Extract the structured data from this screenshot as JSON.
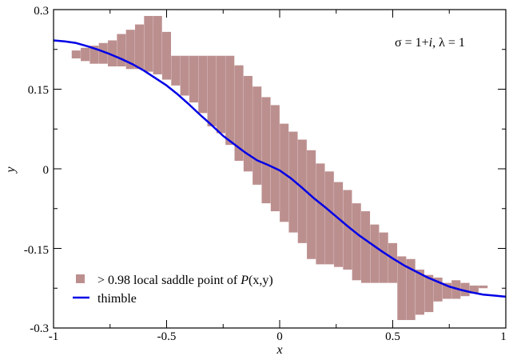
{
  "chart_data": {
    "type": "scatter",
    "title": "",
    "xlabel": "x",
    "ylabel": "y",
    "xlim": [
      -1,
      1
    ],
    "ylim": [
      -0.3,
      0.3
    ],
    "x_ticks": [
      -1,
      -0.5,
      0,
      0.5,
      1
    ],
    "x_tick_labels": [
      "-1",
      "-0.5",
      "0",
      "0.5",
      "1"
    ],
    "y_ticks": [
      -0.3,
      -0.15,
      0,
      0.15,
      0.3
    ],
    "y_tick_labels": [
      "-0.3",
      "-0.15",
      "0",
      "0.15",
      "0.3"
    ],
    "grid": false,
    "annotation": {
      "text_main": "σ = 1+",
      "text_i": "i",
      "text_rest": ", λ = 1"
    },
    "legend": {
      "placement": "bottom-left",
      "entries": [
        {
          "prefix": "> 0.98 local saddle point of ",
          "func": "P",
          "args": "(x,y)",
          "color": "#bc8f8f"
        },
        {
          "label": "thimble",
          "color": "#0000e6"
        }
      ]
    },
    "series": [
      {
        "kind": "bars",
        "color": "#bc8f8f",
        "bin_width": 0.04,
        "ranges": [
          [
            -0.9,
            0.208,
            0.223
          ],
          [
            -0.86,
            0.203,
            0.228
          ],
          [
            -0.82,
            0.198,
            0.232
          ],
          [
            -0.78,
            0.198,
            0.237
          ],
          [
            -0.74,
            0.193,
            0.242
          ],
          [
            -0.7,
            0.193,
            0.254
          ],
          [
            -0.66,
            0.188,
            0.262
          ],
          [
            -0.62,
            0.188,
            0.272
          ],
          [
            -0.58,
            0.183,
            0.288
          ],
          [
            -0.54,
            0.178,
            0.288
          ],
          [
            -0.5,
            0.168,
            0.258
          ],
          [
            -0.46,
            0.157,
            0.213
          ],
          [
            -0.42,
            0.138,
            0.213
          ],
          [
            -0.38,
            0.125,
            0.213
          ],
          [
            -0.34,
            0.105,
            0.213
          ],
          [
            -0.3,
            0.08,
            0.213
          ],
          [
            -0.26,
            0.067,
            0.213
          ],
          [
            -0.22,
            0.045,
            0.213
          ],
          [
            -0.18,
            0.015,
            0.195
          ],
          [
            -0.14,
            -0.005,
            0.175
          ],
          [
            -0.1,
            -0.03,
            0.155
          ],
          [
            -0.06,
            -0.065,
            0.135
          ],
          [
            -0.02,
            -0.08,
            0.12
          ],
          [
            0.02,
            -0.1,
            0.085
          ],
          [
            0.06,
            -0.12,
            0.07
          ],
          [
            0.1,
            -0.14,
            0.055
          ],
          [
            0.14,
            -0.17,
            0.035
          ],
          [
            0.18,
            -0.18,
            0.01
          ],
          [
            0.22,
            -0.18,
            -0.005
          ],
          [
            0.26,
            -0.185,
            -0.025
          ],
          [
            0.3,
            -0.19,
            -0.04
          ],
          [
            0.34,
            -0.21,
            -0.065
          ],
          [
            0.38,
            -0.215,
            -0.08
          ],
          [
            0.42,
            -0.215,
            -0.105
          ],
          [
            0.46,
            -0.215,
            -0.12
          ],
          [
            0.5,
            -0.215,
            -0.14
          ],
          [
            0.54,
            -0.285,
            -0.165
          ],
          [
            0.58,
            -0.285,
            -0.17
          ],
          [
            0.62,
            -0.275,
            -0.19
          ],
          [
            0.66,
            -0.27,
            -0.2
          ],
          [
            0.7,
            -0.25,
            -0.205
          ],
          [
            0.74,
            -0.245,
            -0.215
          ],
          [
            0.78,
            -0.245,
            -0.21
          ],
          [
            0.82,
            -0.24,
            -0.215
          ],
          [
            0.86,
            -0.235,
            -0.22
          ],
          [
            0.9,
            -0.225,
            -0.22
          ]
        ]
      },
      {
        "name": "thimble",
        "kind": "line",
        "color": "#0000e6",
        "x": [
          -1,
          -0.95,
          -0.9,
          -0.85,
          -0.8,
          -0.75,
          -0.7,
          -0.65,
          -0.6,
          -0.55,
          -0.5,
          -0.45,
          -0.4,
          -0.35,
          -0.3,
          -0.25,
          -0.2,
          -0.15,
          -0.1,
          -0.05,
          0,
          0.05,
          0.1,
          0.15,
          0.2,
          0.25,
          0.3,
          0.35,
          0.4,
          0.45,
          0.5,
          0.55,
          0.6,
          0.65,
          0.7,
          0.75,
          0.8,
          0.85,
          0.9,
          0.95,
          1
        ],
        "y": [
          0.242,
          0.24,
          0.237,
          0.231,
          0.224,
          0.216,
          0.207,
          0.197,
          0.185,
          0.171,
          0.157,
          0.14,
          0.121,
          0.101,
          0.082,
          0.062,
          0.046,
          0.03,
          0.016,
          0.007,
          -0.003,
          -0.018,
          -0.036,
          -0.055,
          -0.072,
          -0.09,
          -0.108,
          -0.125,
          -0.14,
          -0.155,
          -0.169,
          -0.182,
          -0.193,
          -0.204,
          -0.213,
          -0.222,
          -0.228,
          -0.233,
          -0.237,
          -0.239,
          -0.241
        ]
      }
    ]
  }
}
